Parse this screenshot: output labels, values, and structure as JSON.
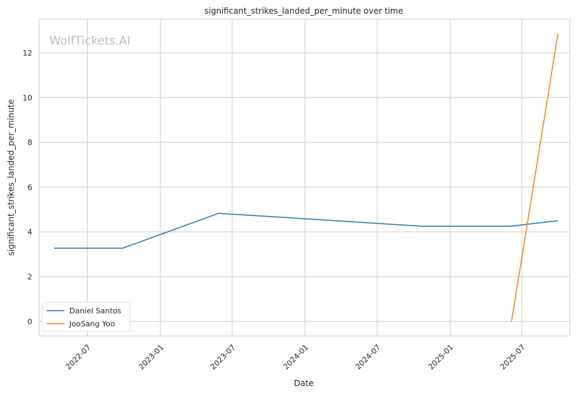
{
  "chart_data": {
    "type": "line",
    "title": "significant_strikes_landed_per_minute over time",
    "xlabel": "Date",
    "ylabel": "significant_strikes_landed_per_minute",
    "watermark": "WolfTickets.AI",
    "xlim": [
      "2022-03-01",
      "2025-10-30"
    ],
    "ylim": [
      -0.65,
      13.5
    ],
    "x_ticks": [
      "2022-07",
      "2023-01",
      "2023-07",
      "2024-01",
      "2024-07",
      "2025-01",
      "2025-07"
    ],
    "y_ticks": [
      0,
      2,
      4,
      6,
      8,
      10,
      12
    ],
    "grid": true,
    "legend_position": "lower-left",
    "series": [
      {
        "name": "Daniel Santos",
        "color": "#1f77b4",
        "x": [
          "2022-04-08",
          "2022-09-28",
          "2023-05-28",
          "2024-10-24",
          "2025-06-02",
          "2025-09-30"
        ],
        "y": [
          3.27,
          3.27,
          4.83,
          4.25,
          4.25,
          4.5
        ]
      },
      {
        "name": "JooSang Yoo",
        "color": "#ff7f0e",
        "x": [
          "2025-06-05",
          "2025-09-30"
        ],
        "y": [
          0,
          12.85
        ]
      }
    ]
  }
}
